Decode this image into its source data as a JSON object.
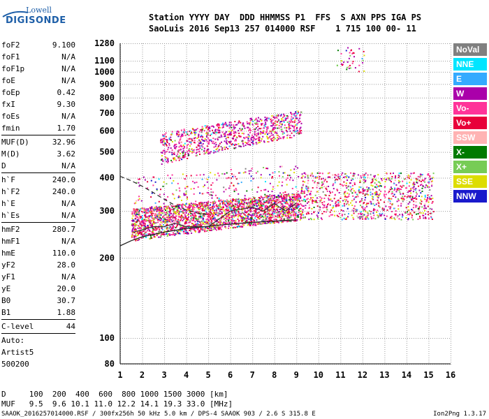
{
  "logo": {
    "line1": "Lowell",
    "line2": "DIGISONDE"
  },
  "header": {
    "labels": "Station YYYY DAY  DDD HHMMSS P1  FFS  S AXN PPS IGA PS",
    "values": "SaoLuis 2016 Sep13 257 014000 RSF    1 715 100 00- 11"
  },
  "params": [
    {
      "k": "foF2",
      "v": "9.100"
    },
    {
      "k": "foF1",
      "v": "N/A"
    },
    {
      "k": "foF1p",
      "v": "N/A"
    },
    {
      "k": "foE",
      "v": "N/A"
    },
    {
      "k": "foEp",
      "v": "0.42"
    },
    {
      "k": "fxI",
      "v": "9.30"
    },
    {
      "k": "foEs",
      "v": "N/A"
    },
    {
      "k": "fmin",
      "v": "1.70"
    },
    {
      "k": "MUF(D)",
      "v": "32.96"
    },
    {
      "k": "M(D)",
      "v": "3.62"
    },
    {
      "k": "D",
      "v": "N/A"
    },
    {
      "k": "h`F",
      "v": "240.0"
    },
    {
      "k": "h`F2",
      "v": "240.0"
    },
    {
      "k": "h`E",
      "v": "N/A"
    },
    {
      "k": "h`Es",
      "v": "N/A"
    },
    {
      "k": "hmF2",
      "v": "280.7"
    },
    {
      "k": "hmF1",
      "v": "N/A"
    },
    {
      "k": "hmE",
      "v": "110.0"
    },
    {
      "k": "yF2",
      "v": "28.0"
    },
    {
      "k": "yF1",
      "v": "N/A"
    },
    {
      "k": "yE",
      "v": "20.0"
    },
    {
      "k": "B0",
      "v": "30.7"
    },
    {
      "k": "B1",
      "v": "1.88"
    },
    {
      "k": "C-level",
      "v": "44"
    }
  ],
  "auto": {
    "line1": "Auto:",
    "line2": "Artist5",
    "line3": "500200"
  },
  "legend": [
    {
      "label": "NoVal",
      "bg": "#808080",
      "fg": "#ffffff"
    },
    {
      "label": "NNE",
      "bg": "#00e5ff",
      "fg": "#ffffff"
    },
    {
      "label": "E",
      "bg": "#33aaff",
      "fg": "#ffffff"
    },
    {
      "label": "W",
      "bg": "#aa00aa",
      "fg": "#ffffff"
    },
    {
      "label": "Vo-",
      "bg": "#ff3399",
      "fg": "#ffffff"
    },
    {
      "label": "Vo+",
      "bg": "#e8003a",
      "fg": "#ffffff"
    },
    {
      "label": "SSW",
      "bg": "#ffb3b3",
      "fg": "#ffffff"
    },
    {
      "label": "X-",
      "bg": "#007a00",
      "fg": "#ffffff"
    },
    {
      "label": "X+",
      "bg": "#77cc55",
      "fg": "#ffffff"
    },
    {
      "label": "SSE",
      "bg": "#dddd00",
      "fg": "#ffffff"
    },
    {
      "label": "NNW",
      "bg": "#1a1acc",
      "fg": "#ffffff"
    }
  ],
  "footer": {
    "d_line": "D     100  200  400  600  800 1000 1500 3000 [km]",
    "muf_line": "MUF   9.5  9.6 10.1 11.0 12.2 14.1 19.3 33.0 [MHz]",
    "file_info": "SAAOK_2016257014000.RSF / 300fx256h 50 kHz 5.0 km / DPS-4 SAAOK 903 / 2.6 S 315.8 E",
    "version": "Ion2Png 1.3.17"
  },
  "chart_data": {
    "type": "scatter",
    "title": "",
    "xlabel": "",
    "ylabel": "",
    "x_range": [
      1,
      16
    ],
    "y_range": [
      80,
      1280
    ],
    "y_scale": "log",
    "x_ticks": [
      1,
      2,
      3,
      4,
      5,
      6,
      7,
      8,
      9,
      10,
      11,
      12,
      13,
      14,
      15,
      16
    ],
    "y_ticks": [
      80,
      100,
      200,
      300,
      400,
      500,
      600,
      700,
      800,
      900,
      1000,
      1100,
      1280
    ],
    "grid": true,
    "legend_position": "right",
    "clusters": [
      {
        "name": "F trace",
        "x": [
          1.5,
          9.2
        ],
        "y": [
          240,
          340
        ],
        "density": "high"
      },
      {
        "name": "spread F",
        "x": [
          9.2,
          15.2
        ],
        "y": [
          280,
          420
        ],
        "density": "medium"
      },
      {
        "name": "second hop",
        "x": [
          2.8,
          9.2
        ],
        "y": [
          490,
          700
        ],
        "density": "medium"
      },
      {
        "name": "scattered returns",
        "x": [
          10.8,
          12.1
        ],
        "y": [
          1000,
          1250
        ],
        "density": "low"
      }
    ],
    "profile_curve": {
      "x": [
        1.0,
        1.5,
        2,
        3,
        4,
        5,
        6,
        7,
        8,
        9
      ],
      "y": [
        222,
        232,
        240,
        250,
        258,
        263,
        268,
        272,
        275,
        278
      ]
    },
    "dashed_curve": {
      "x": [
        1.0,
        1.5,
        2,
        2.5,
        3,
        3.5,
        4,
        4.5,
        5
      ],
      "y": [
        405,
        390,
        372,
        352,
        332,
        315,
        303,
        295,
        290
      ]
    },
    "trace_curve": {
      "x": [
        1.6,
        2.0,
        2.5,
        3,
        3.5,
        4,
        5,
        6,
        7,
        7.5,
        8,
        8.5,
        9
      ],
      "y": [
        250,
        255,
        262,
        262,
        270,
        262,
        262,
        300,
        310,
        300,
        320,
        300,
        322
      ]
    }
  }
}
